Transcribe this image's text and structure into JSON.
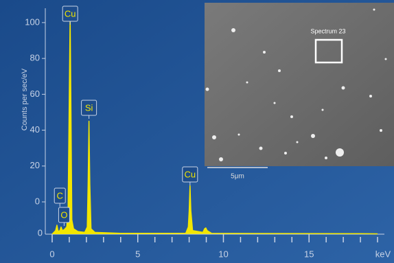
{
  "chart_data": {
    "type": "line",
    "y_label": "Counts per sec/eV",
    "x_unit_label": "keV",
    "xlim": [
      -0.4,
      19.4
    ],
    "ylim": [
      -18,
      108
    ],
    "xticks": [
      0,
      5,
      10,
      15
    ],
    "xminorticks": [
      1,
      2,
      3,
      4,
      6,
      7,
      8,
      9,
      11,
      12,
      13,
      14,
      16,
      17,
      18,
      19
    ],
    "yticks": [
      0,
      20,
      40,
      60,
      80,
      100
    ],
    "y_bottom_label": "0",
    "color": "#f2e600",
    "x": [
      0,
      0.1,
      0.2,
      0.28,
      0.35,
      0.45,
      0.52,
      0.6,
      0.7,
      0.85,
      0.93,
      1.0,
      1.05,
      1.1,
      1.15,
      1.25,
      1.5,
      1.9,
      2.05,
      2.1,
      2.15,
      2.2,
      2.27,
      2.5,
      4,
      7.8,
      7.95,
      8.0,
      8.05,
      8.1,
      8.2,
      8.8,
      8.9,
      8.97,
      9.05,
      9.3,
      12,
      18,
      19
    ],
    "values": [
      -18,
      -17,
      -16,
      -13,
      -16.5,
      -16,
      -14,
      -16,
      -15.5,
      -14,
      -5,
      60,
      104,
      50,
      -10,
      -15,
      -16.5,
      -17,
      -14,
      10,
      45,
      10,
      -15,
      -17,
      -17.5,
      -17.5,
      -14,
      -5,
      9,
      -5,
      -16,
      -17,
      -15,
      -14.5,
      -16,
      -17.5,
      -17.6,
      -17.7,
      -17.8
    ],
    "peak_labels": [
      {
        "text": "Cu",
        "x": 1.05
      },
      {
        "text": "Si",
        "x": 2.15
      },
      {
        "text": "Cu",
        "x": 8.05
      },
      {
        "text": "C",
        "x": 0.45
      },
      {
        "text": "O",
        "x": 0.7
      }
    ]
  },
  "inset": {
    "region_label": "Spectrum 23",
    "scale_bar_label": "5μm"
  }
}
